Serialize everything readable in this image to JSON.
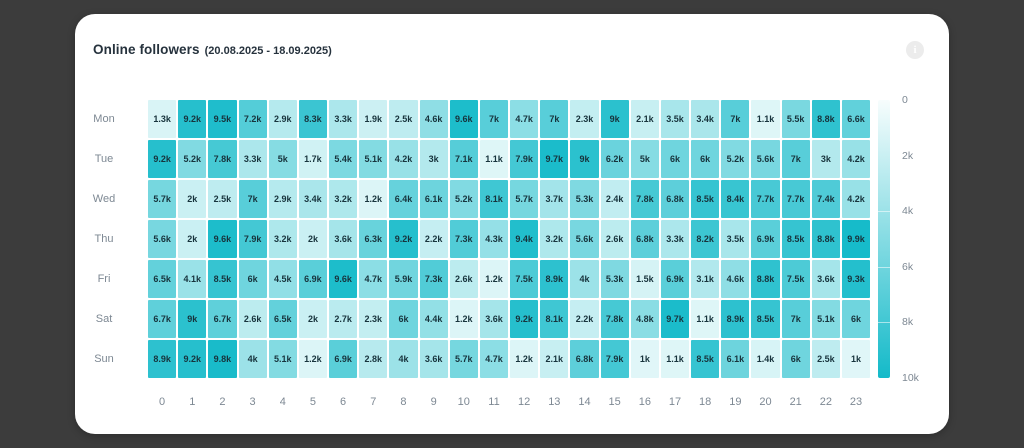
{
  "header": {
    "title": "Online followers",
    "date_range": "(20.08.2025 - 18.09.2025)",
    "info_button_glyph": "i"
  },
  "chart_data": {
    "type": "heatmap",
    "title": "Online followers",
    "subtitle": "(20.08.2025 - 18.09.2025)",
    "x_categories": [
      "0",
      "1",
      "2",
      "3",
      "4",
      "5",
      "6",
      "7",
      "8",
      "9",
      "10",
      "11",
      "12",
      "13",
      "14",
      "15",
      "16",
      "17",
      "18",
      "19",
      "20",
      "21",
      "22",
      "23"
    ],
    "y_categories": [
      "Mon",
      "Tue",
      "Wed",
      "Thu",
      "Fri",
      "Sat",
      "Sun"
    ],
    "unit": "k",
    "values_k": [
      [
        1.3,
        9.2,
        9.5,
        7.2,
        2.9,
        8.3,
        3.3,
        1.9,
        2.5,
        4.6,
        9.6,
        7,
        4.7,
        7,
        2.3,
        9,
        2.1,
        3.5,
        3.4,
        7,
        1.1,
        5.5,
        8.8,
        6.6
      ],
      [
        9.2,
        5.2,
        7.8,
        3.3,
        5,
        1.7,
        5.4,
        5.1,
        4.2,
        3,
        7.1,
        1.1,
        7.9,
        9.7,
        9,
        6.2,
        5,
        6,
        6,
        5.2,
        5.6,
        7,
        3,
        4.2
      ],
      [
        5.7,
        2,
        2.5,
        7,
        2.9,
        3.4,
        3.2,
        1.2,
        6.4,
        6.1,
        5.2,
        8.1,
        5.7,
        3.7,
        5.3,
        2.4,
        7.8,
        6.8,
        8.5,
        8.4,
        7.7,
        7.7,
        7.4,
        4.2
      ],
      [
        5.6,
        2,
        9.6,
        7.9,
        3.2,
        2,
        3.6,
        6.3,
        9.2,
        2.2,
        7.3,
        4.3,
        9.4,
        3.2,
        5.6,
        2.6,
        6.8,
        3.3,
        8.2,
        3.5,
        6.9,
        8.5,
        8.8,
        9.9
      ],
      [
        6.5,
        4.1,
        8.5,
        6,
        4.5,
        6.9,
        9.6,
        4.7,
        5.9,
        7.3,
        2.6,
        1.2,
        7.5,
        8.9,
        4,
        5.3,
        1.5,
        6.9,
        3.1,
        4.6,
        8.8,
        7.5,
        3.6,
        9.3
      ],
      [
        6.7,
        9,
        6.7,
        2.6,
        6.5,
        2,
        2.7,
        2.3,
        6,
        4.4,
        1.2,
        3.6,
        9.2,
        8.1,
        2.2,
        7.8,
        4.8,
        9.7,
        1.1,
        8.9,
        8.5,
        7,
        5.1,
        6
      ],
      [
        8.9,
        9.2,
        9.8,
        4,
        5.1,
        1.2,
        6.9,
        2.8,
        4,
        3.6,
        5.7,
        4.7,
        1.2,
        2.1,
        6.8,
        7.9,
        1,
        1.1,
        8.5,
        6.1,
        1.4,
        6,
        2.5,
        1
      ]
    ],
    "color_scale": {
      "min": 0,
      "max": 10000,
      "from_color": "#f7fdfd",
      "to_color": "#14bac9",
      "ticks": [
        "0",
        "2k",
        "4k",
        "6k",
        "8k",
        "10k"
      ],
      "separator_ticks_pct": [
        40,
        60,
        80
      ]
    },
    "legend_position": "right",
    "grid": false
  }
}
